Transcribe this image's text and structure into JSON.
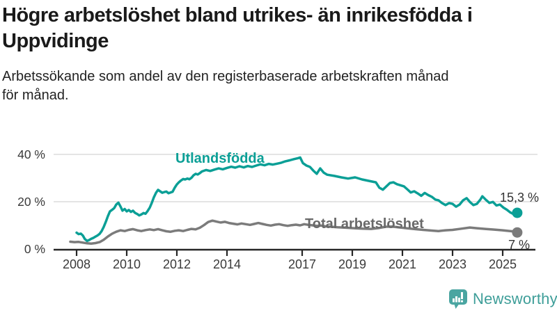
{
  "header": {
    "title_lines": [
      "Högre arbetslöshet bland utrikes- än inrikesfödda i",
      "Uppvidinge"
    ],
    "subtitle_lines": [
      "Arbetssökande som andel av den registerbaserade arbetskraften månad",
      "för månad."
    ]
  },
  "chart_data": {
    "type": "line",
    "title": "Högre arbetslöshet bland utrikes- än inrikesfödda i Uppvidinge",
    "subtitle": "Arbetssökande som andel av den registerbaserade arbetskraften månad för månad.",
    "xlabel": "",
    "ylabel": "",
    "unit": "%",
    "grid": "horizontal",
    "legend_position": "inline-labels",
    "x_axis": {
      "range": [
        2007.6,
        2025.9
      ],
      "ticks": [
        "2008",
        "2010",
        "2012",
        "2014",
        "2017",
        "2019",
        "2021",
        "2023",
        "2025"
      ]
    },
    "y_axis": {
      "range": [
        0,
        44
      ],
      "ticks": [
        {
          "value": 0,
          "label": "0 %"
        },
        {
          "value": 20,
          "label": "20 %"
        },
        {
          "value": 40,
          "label": "40 %"
        }
      ]
    },
    "series": [
      {
        "name": "Utlandsfödda",
        "color": "#0b9f96",
        "end_value": 15.3,
        "end_value_label": "15,3 %",
        "points": [
          [
            2008.0,
            6.9
          ],
          [
            2008.08,
            6.3
          ],
          [
            2008.17,
            6.5
          ],
          [
            2008.25,
            5.7
          ],
          [
            2008.33,
            4.2
          ],
          [
            2008.42,
            3.4
          ],
          [
            2008.5,
            3.8
          ],
          [
            2008.58,
            4.3
          ],
          [
            2008.67,
            4.7
          ],
          [
            2008.75,
            5.2
          ],
          [
            2008.83,
            5.7
          ],
          [
            2008.92,
            6.4
          ],
          [
            2009.0,
            7.6
          ],
          [
            2009.08,
            9.3
          ],
          [
            2009.17,
            11.6
          ],
          [
            2009.25,
            13.9
          ],
          [
            2009.33,
            15.9
          ],
          [
            2009.42,
            16.6
          ],
          [
            2009.5,
            17.3
          ],
          [
            2009.58,
            18.8
          ],
          [
            2009.67,
            19.6
          ],
          [
            2009.75,
            18.0
          ],
          [
            2009.83,
            16.2
          ],
          [
            2009.92,
            16.9
          ],
          [
            2010.0,
            15.9
          ],
          [
            2010.08,
            16.5
          ],
          [
            2010.17,
            15.7
          ],
          [
            2010.25,
            16.2
          ],
          [
            2010.33,
            15.3
          ],
          [
            2010.42,
            14.8
          ],
          [
            2010.5,
            14.2
          ],
          [
            2010.58,
            14.6
          ],
          [
            2010.67,
            15.2
          ],
          [
            2010.75,
            14.9
          ],
          [
            2010.83,
            16.0
          ],
          [
            2010.92,
            17.5
          ],
          [
            2011.0,
            19.5
          ],
          [
            2011.08,
            21.8
          ],
          [
            2011.17,
            23.8
          ],
          [
            2011.25,
            25.0
          ],
          [
            2011.33,
            24.4
          ],
          [
            2011.42,
            23.8
          ],
          [
            2011.5,
            24.1
          ],
          [
            2011.58,
            24.3
          ],
          [
            2011.67,
            23.6
          ],
          [
            2011.75,
            23.9
          ],
          [
            2011.83,
            24.2
          ],
          [
            2011.92,
            26.0
          ],
          [
            2012.0,
            27.3
          ],
          [
            2012.08,
            28.2
          ],
          [
            2012.17,
            29.0
          ],
          [
            2012.25,
            29.6
          ],
          [
            2012.33,
            29.4
          ],
          [
            2012.42,
            29.8
          ],
          [
            2012.5,
            29.5
          ],
          [
            2012.58,
            30.1
          ],
          [
            2012.67,
            31.2
          ],
          [
            2012.75,
            31.8
          ],
          [
            2012.83,
            31.5
          ],
          [
            2012.92,
            32.1
          ],
          [
            2013.0,
            32.8
          ],
          [
            2013.17,
            33.4
          ],
          [
            2013.33,
            33.0
          ],
          [
            2013.5,
            33.6
          ],
          [
            2013.67,
            34.1
          ],
          [
            2013.83,
            33.7
          ],
          [
            2014.0,
            34.3
          ],
          [
            2014.17,
            34.8
          ],
          [
            2014.33,
            34.4
          ],
          [
            2014.5,
            35.0
          ],
          [
            2014.67,
            34.5
          ],
          [
            2014.83,
            35.1
          ],
          [
            2015.0,
            34.7
          ],
          [
            2015.17,
            35.3
          ],
          [
            2015.33,
            35.8
          ],
          [
            2015.5,
            35.4
          ],
          [
            2015.67,
            36.0
          ],
          [
            2015.83,
            35.7
          ],
          [
            2016.0,
            36.1
          ],
          [
            2016.17,
            36.5
          ],
          [
            2016.33,
            37.1
          ],
          [
            2016.5,
            37.5
          ],
          [
            2016.67,
            38.0
          ],
          [
            2016.83,
            38.4
          ],
          [
            2016.92,
            38.7
          ],
          [
            2017.03,
            36.3
          ],
          [
            2017.17,
            35.3
          ],
          [
            2017.31,
            34.7
          ],
          [
            2017.44,
            33.2
          ],
          [
            2017.58,
            31.8
          ],
          [
            2017.72,
            34.1
          ],
          [
            2017.86,
            32.3
          ],
          [
            2018.0,
            31.4
          ],
          [
            2018.28,
            30.9
          ],
          [
            2018.56,
            30.3
          ],
          [
            2018.83,
            29.8
          ],
          [
            2019.11,
            30.3
          ],
          [
            2019.39,
            29.4
          ],
          [
            2019.67,
            28.8
          ],
          [
            2019.94,
            28.2
          ],
          [
            2020.08,
            25.9
          ],
          [
            2020.22,
            25.1
          ],
          [
            2020.5,
            27.9
          ],
          [
            2020.64,
            28.2
          ],
          [
            2020.78,
            27.4
          ],
          [
            2021.06,
            26.5
          ],
          [
            2021.19,
            25.3
          ],
          [
            2021.33,
            23.9
          ],
          [
            2021.47,
            24.4
          ],
          [
            2021.61,
            23.5
          ],
          [
            2021.75,
            22.5
          ],
          [
            2021.89,
            23.7
          ],
          [
            2022.03,
            22.8
          ],
          [
            2022.17,
            22.1
          ],
          [
            2022.31,
            20.9
          ],
          [
            2022.44,
            20.6
          ],
          [
            2022.58,
            19.4
          ],
          [
            2022.72,
            18.6
          ],
          [
            2022.86,
            19.4
          ],
          [
            2023.0,
            19.1
          ],
          [
            2023.14,
            17.9
          ],
          [
            2023.28,
            18.8
          ],
          [
            2023.42,
            20.6
          ],
          [
            2023.56,
            21.5
          ],
          [
            2023.7,
            19.8
          ],
          [
            2023.83,
            18.6
          ],
          [
            2023.97,
            19.1
          ],
          [
            2024.11,
            20.9
          ],
          [
            2024.19,
            22.3
          ],
          [
            2024.33,
            20.8
          ],
          [
            2024.47,
            19.5
          ],
          [
            2024.61,
            19.9
          ],
          [
            2024.75,
            18.4
          ],
          [
            2024.89,
            18.8
          ],
          [
            2025.03,
            17.5
          ],
          [
            2025.17,
            16.6
          ],
          [
            2025.31,
            15.4
          ],
          [
            2025.45,
            14.7
          ],
          [
            2025.58,
            15.3
          ]
        ]
      },
      {
        "name": "Total arbetslöshet",
        "color": "#7b7b7b",
        "end_value": 7,
        "end_value_label": "7 %",
        "points": [
          [
            2007.75,
            3.1
          ],
          [
            2007.92,
            2.9
          ],
          [
            2008.08,
            3.0
          ],
          [
            2008.25,
            2.7
          ],
          [
            2008.42,
            2.4
          ],
          [
            2008.58,
            2.3
          ],
          [
            2008.75,
            2.5
          ],
          [
            2008.92,
            2.9
          ],
          [
            2009.08,
            3.9
          ],
          [
            2009.25,
            5.3
          ],
          [
            2009.42,
            6.5
          ],
          [
            2009.58,
            7.3
          ],
          [
            2009.75,
            7.9
          ],
          [
            2009.92,
            7.6
          ],
          [
            2010.08,
            8.1
          ],
          [
            2010.25,
            8.4
          ],
          [
            2010.42,
            7.9
          ],
          [
            2010.58,
            7.6
          ],
          [
            2010.75,
            8.0
          ],
          [
            2010.92,
            8.3
          ],
          [
            2011.08,
            8.0
          ],
          [
            2011.25,
            8.4
          ],
          [
            2011.42,
            7.9
          ],
          [
            2011.58,
            7.5
          ],
          [
            2011.75,
            7.3
          ],
          [
            2011.92,
            7.7
          ],
          [
            2012.08,
            7.9
          ],
          [
            2012.25,
            7.6
          ],
          [
            2012.42,
            8.1
          ],
          [
            2012.58,
            8.5
          ],
          [
            2012.75,
            8.3
          ],
          [
            2012.92,
            9.0
          ],
          [
            2013.08,
            10.1
          ],
          [
            2013.25,
            11.4
          ],
          [
            2013.42,
            12.0
          ],
          [
            2013.58,
            11.6
          ],
          [
            2013.75,
            11.2
          ],
          [
            2013.92,
            11.5
          ],
          [
            2014.08,
            11.0
          ],
          [
            2014.25,
            10.7
          ],
          [
            2014.42,
            10.4
          ],
          [
            2014.58,
            10.8
          ],
          [
            2014.75,
            10.5
          ],
          [
            2014.92,
            10.2
          ],
          [
            2015.08,
            10.6
          ],
          [
            2015.25,
            11.0
          ],
          [
            2015.42,
            10.6
          ],
          [
            2015.58,
            10.2
          ],
          [
            2015.75,
            9.9
          ],
          [
            2015.92,
            10.3
          ],
          [
            2016.08,
            10.5
          ],
          [
            2016.25,
            10.1
          ],
          [
            2016.42,
            9.8
          ],
          [
            2016.58,
            10.1
          ],
          [
            2016.75,
            10.3
          ],
          [
            2016.92,
            10.0
          ],
          [
            2017.08,
            10.5
          ],
          [
            2017.25,
            10.2
          ],
          [
            2017.42,
            10.0
          ],
          [
            2017.58,
            9.8
          ],
          [
            2017.75,
            9.9
          ],
          [
            2017.92,
            9.6
          ],
          [
            2018.08,
            9.5
          ],
          [
            2018.42,
            9.2
          ],
          [
            2018.75,
            9.0
          ],
          [
            2019.08,
            8.8
          ],
          [
            2019.42,
            8.6
          ],
          [
            2019.75,
            8.5
          ],
          [
            2020.08,
            8.9
          ],
          [
            2020.33,
            9.4
          ],
          [
            2020.58,
            9.5
          ],
          [
            2020.83,
            9.2
          ],
          [
            2021.17,
            8.8
          ],
          [
            2021.5,
            8.4
          ],
          [
            2021.83,
            8.1
          ],
          [
            2022.17,
            7.8
          ],
          [
            2022.44,
            7.6
          ],
          [
            2022.72,
            7.9
          ],
          [
            2023.0,
            8.1
          ],
          [
            2023.35,
            8.6
          ],
          [
            2023.69,
            9.1
          ],
          [
            2023.97,
            8.8
          ],
          [
            2024.3,
            8.5
          ],
          [
            2024.67,
            8.2
          ],
          [
            2025.0,
            7.9
          ],
          [
            2025.3,
            7.6
          ],
          [
            2025.45,
            7.4
          ],
          [
            2025.58,
            7.0
          ]
        ]
      }
    ]
  },
  "colors": {
    "accent_teal": "#0b9f96",
    "line_gray": "#7b7b7b",
    "grid": "#dcdcdc",
    "axis_line": "#262626",
    "axis_text": "#3a3a3a",
    "title_text": "#1a1a1a",
    "brand_teal": "#4aa5a1"
  },
  "footer": {
    "brand": "Newsworthy"
  }
}
